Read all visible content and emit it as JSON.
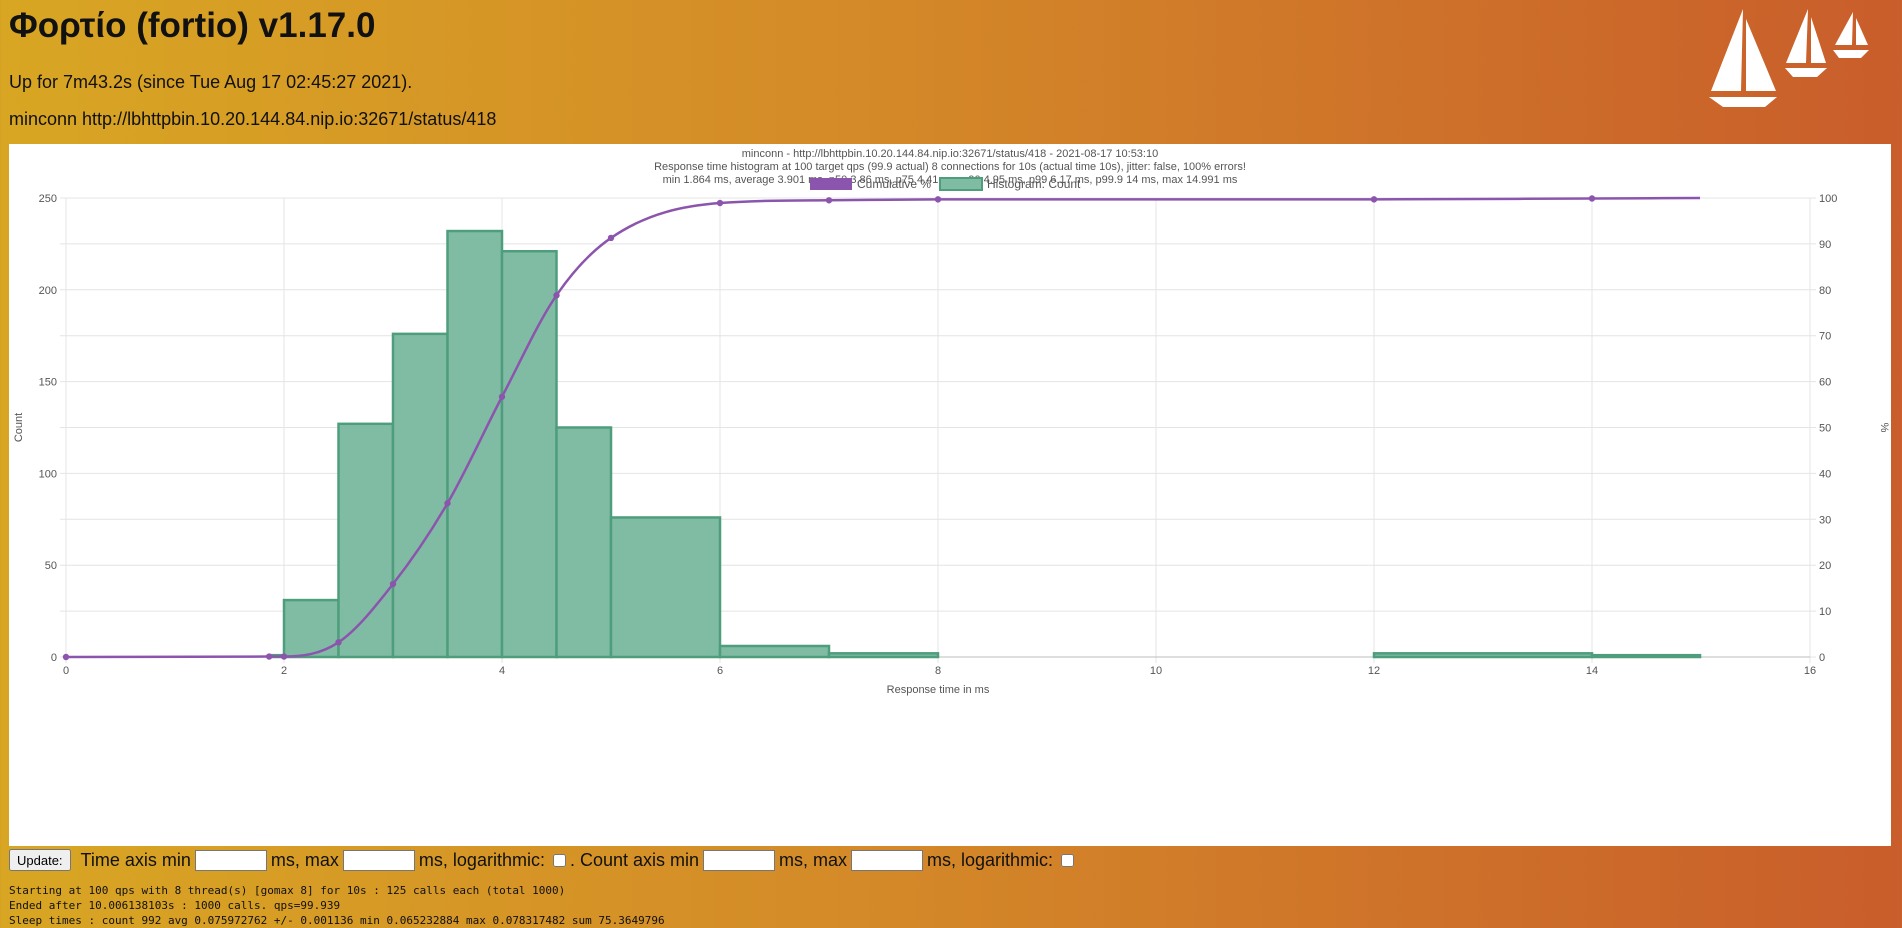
{
  "page": {
    "title": "Φορτίο (fortio) v1.17.0",
    "uptime": "Up for 7m43.2s (since Tue Aug 17 02:45:27 2021).",
    "target": "minconn http://lbhttpbin.10.20.144.84.nip.io:32671/status/418"
  },
  "controls": {
    "update_label": "Update:",
    "time_min_label": "Time axis min",
    "ms_max_label": "ms, max",
    "ms_log_label": "ms, logarithmic:",
    "count_min_label": ". Count axis min",
    "count_ms_max_label": "ms, max",
    "count_log_label": "ms, logarithmic:",
    "time_min_value": "",
    "time_max_value": "",
    "count_min_value": "",
    "count_max_value": ""
  },
  "log_lines": [
    "Starting at 100 qps with 8 thread(s) [gomax 8] for 10s : 125 calls each (total 1000)",
    "Ended after 10.006138103s : 1000 calls. qps=99.939",
    "Sleep times : count 992 avg 0.075972762 +/- 0.001136 min 0.065232884 max 0.078317482 sum 75.3649796"
  ],
  "colors": {
    "histogram_fill": "#80bca4",
    "histogram_stroke": "#4e9e7d",
    "cumulative_line": "#8c55ad"
  },
  "chart_data": {
    "type": "bar",
    "title": [
      "minconn - http://lbhttpbin.10.20.144.84.nip.io:32671/status/418 - 2021-08-17 10:53:10",
      "Response time histogram at 100 target qps (99.9 actual) 8 connections for 10s (actual time 10s), jitter: false, 100% errors!",
      "min 1.864 ms, average 3.901 ms, p50 3.86 ms, p75 4.41 ms, p90 4.95 ms, p99 6.17 ms, p99.9 14 ms, max 14.991 ms"
    ],
    "xlabel": "Response time in ms",
    "ylabel": "Count",
    "y2label": "%",
    "xlim": [
      0,
      16
    ],
    "ylim": [
      0,
      250
    ],
    "y2lim": [
      0,
      100
    ],
    "xticks": [
      0,
      2,
      4,
      6,
      8,
      10,
      12,
      14,
      16
    ],
    "yticks": [
      0,
      50,
      100,
      150,
      200,
      250
    ],
    "y2ticks": [
      0,
      10,
      20,
      30,
      40,
      50,
      60,
      70,
      80,
      90,
      100
    ],
    "grid": true,
    "legend_position": "top",
    "legend": [
      "Cumulative %",
      "Histogram: Count"
    ],
    "histogram": [
      {
        "start": 1.864,
        "end": 2.0,
        "count": 1
      },
      {
        "start": 2.0,
        "end": 2.5,
        "count": 31
      },
      {
        "start": 2.5,
        "end": 3.0,
        "count": 127
      },
      {
        "start": 3.0,
        "end": 3.5,
        "count": 176
      },
      {
        "start": 3.5,
        "end": 4.0,
        "count": 232
      },
      {
        "start": 4.0,
        "end": 4.5,
        "count": 221
      },
      {
        "start": 4.5,
        "end": 5.0,
        "count": 125
      },
      {
        "start": 5.0,
        "end": 6.0,
        "count": 76
      },
      {
        "start": 6.0,
        "end": 7.0,
        "count": 6
      },
      {
        "start": 7.0,
        "end": 8.0,
        "count": 2
      },
      {
        "start": 8.0,
        "end": 12.0,
        "count": 0
      },
      {
        "start": 12.0,
        "end": 14.0,
        "count": 2
      },
      {
        "start": 14.0,
        "end": 14.991,
        "count": 1
      }
    ],
    "cumulative": [
      {
        "x": 0,
        "y": 0
      },
      {
        "x": 1.864,
        "y": 0.1
      },
      {
        "x": 2.0,
        "y": 0.1
      },
      {
        "x": 2.5,
        "y": 3.2
      },
      {
        "x": 3.0,
        "y": 15.9
      },
      {
        "x": 3.5,
        "y": 33.5
      },
      {
        "x": 4.0,
        "y": 56.7
      },
      {
        "x": 4.5,
        "y": 78.8
      },
      {
        "x": 5.0,
        "y": 91.3
      },
      {
        "x": 6.0,
        "y": 98.9
      },
      {
        "x": 7.0,
        "y": 99.5
      },
      {
        "x": 8.0,
        "y": 99.7
      },
      {
        "x": 12.0,
        "y": 99.7
      },
      {
        "x": 14.0,
        "y": 99.9
      },
      {
        "x": 14.991,
        "y": 100
      }
    ]
  }
}
